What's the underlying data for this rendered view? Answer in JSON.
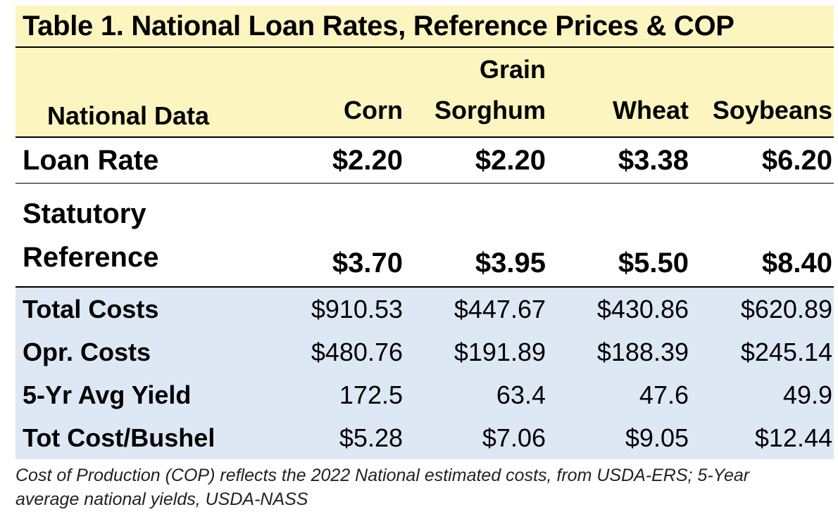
{
  "title": "Table 1. National Loan Rates, Reference Prices & COP",
  "header": {
    "row_label": "National Data",
    "columns": [
      {
        "line1": "",
        "line2": "Corn"
      },
      {
        "line1": "Grain",
        "line2": "Sorghum"
      },
      {
        "line1": "",
        "line2": "Wheat"
      },
      {
        "line1": "",
        "line2": "Soybeans"
      }
    ]
  },
  "rows": [
    {
      "label": "Loan Rate",
      "values": [
        "$2.20",
        "$2.20",
        "$3.38",
        "$6.20"
      ]
    },
    {
      "label_line1": "Statutory",
      "label_line2": "Reference",
      "values": [
        "$3.70",
        "$3.95",
        "$5.50",
        "$8.40"
      ]
    },
    {
      "label": "Total Costs",
      "values": [
        "$910.53",
        "$447.67",
        "$430.86",
        "$620.89"
      ]
    },
    {
      "label": "Opr. Costs",
      "values": [
        "$480.76",
        "$191.89",
        "$188.39",
        "$245.14"
      ]
    },
    {
      "label": "5-Yr Avg Yield",
      "values": [
        "172.5",
        "63.4",
        "47.6",
        "49.9"
      ]
    },
    {
      "label": "Tot Cost/Bushel",
      "values": [
        "$5.28",
        "$7.06",
        "$9.05",
        "$12.44"
      ]
    }
  ],
  "footnote": "Cost of Production (COP) reflects the 2022 National estimated costs, from USDA-ERS; 5-Year average national yields, USDA-NASS",
  "colors": {
    "header_bg": "#fdf5c0",
    "cost_bg": "#dde8f4"
  }
}
